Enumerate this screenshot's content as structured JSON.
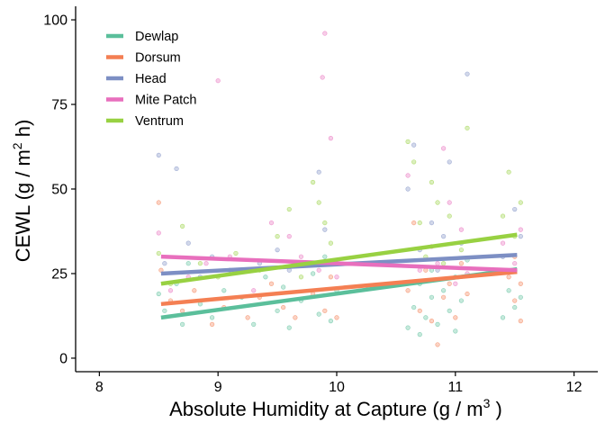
{
  "chart_data": {
    "type": "scatter",
    "title": "",
    "xlabel_main": "Absolute Humidity at Capture (g / m",
    "xlabel_sup": "3",
    "xlabel_end": " )",
    "ylabel_main": "CEWL (g / m",
    "ylabel_sup": "2",
    "ylabel_end": " h)",
    "xlim": [
      7.8,
      12.2
    ],
    "ylim": [
      -4,
      104
    ],
    "x_ticks": [
      8,
      9,
      10,
      11,
      12
    ],
    "y_ticks": [
      0,
      25,
      50,
      75,
      100
    ],
    "grid": false,
    "legend_position": "top-left",
    "series": [
      {
        "name": "Dewlap",
        "color": "#5bbf9b",
        "fit": {
          "x": [
            8.52,
            11.52
          ],
          "y": [
            12.0,
            26.3
          ]
        },
        "points": [
          [
            8.5,
            19
          ],
          [
            8.55,
            14
          ],
          [
            8.65,
            22
          ],
          [
            8.7,
            10
          ],
          [
            8.75,
            28
          ],
          [
            8.85,
            16
          ],
          [
            8.95,
            12
          ],
          [
            9.05,
            20
          ],
          [
            9.2,
            18
          ],
          [
            9.3,
            10
          ],
          [
            9.4,
            24
          ],
          [
            9.5,
            14
          ],
          [
            9.55,
            21
          ],
          [
            9.6,
            9
          ],
          [
            9.7,
            17
          ],
          [
            9.8,
            25
          ],
          [
            9.85,
            13
          ],
          [
            9.9,
            30
          ],
          [
            9.95,
            11
          ],
          [
            10.0,
            20
          ],
          [
            10.6,
            9
          ],
          [
            10.65,
            15
          ],
          [
            10.7,
            22
          ],
          [
            10.7,
            7
          ],
          [
            10.75,
            12
          ],
          [
            10.8,
            18
          ],
          [
            10.8,
            26
          ],
          [
            10.85,
            10
          ],
          [
            10.9,
            20
          ],
          [
            10.95,
            14
          ],
          [
            11.0,
            24
          ],
          [
            11.0,
            8
          ],
          [
            11.05,
            17
          ],
          [
            11.1,
            29
          ],
          [
            11.4,
            12
          ],
          [
            11.45,
            20
          ],
          [
            11.5,
            15
          ],
          [
            11.5,
            26
          ],
          [
            11.55,
            18
          ]
        ]
      },
      {
        "name": "Dorsum",
        "color": "#f47f53",
        "fit": {
          "x": [
            8.52,
            11.52
          ],
          "y": [
            16.0,
            25.5
          ]
        },
        "points": [
          [
            8.5,
            46
          ],
          [
            8.52,
            26
          ],
          [
            8.6,
            17
          ],
          [
            8.7,
            14
          ],
          [
            8.8,
            20
          ],
          [
            8.95,
            10
          ],
          [
            9.05,
            15
          ],
          [
            9.25,
            12
          ],
          [
            9.35,
            18
          ],
          [
            9.45,
            22
          ],
          [
            9.55,
            15
          ],
          [
            9.65,
            12
          ],
          [
            9.8,
            19
          ],
          [
            9.9,
            14
          ],
          [
            9.95,
            24
          ],
          [
            10.0,
            12
          ],
          [
            10.6,
            20
          ],
          [
            10.65,
            40
          ],
          [
            10.7,
            14
          ],
          [
            10.75,
            26
          ],
          [
            10.8,
            11
          ],
          [
            10.85,
            4
          ],
          [
            10.9,
            18
          ],
          [
            10.95,
            22
          ],
          [
            11.0,
            12
          ],
          [
            11.05,
            28
          ],
          [
            11.1,
            19
          ],
          [
            11.45,
            24
          ],
          [
            11.5,
            17
          ],
          [
            11.5,
            30
          ],
          [
            11.55,
            22
          ],
          [
            11.55,
            11
          ]
        ]
      },
      {
        "name": "Head",
        "color": "#7d8fc4",
        "fit": {
          "x": [
            8.52,
            11.52
          ],
          "y": [
            25.0,
            30.5
          ]
        },
        "points": [
          [
            8.5,
            60
          ],
          [
            8.55,
            28
          ],
          [
            8.65,
            56
          ],
          [
            8.75,
            34
          ],
          [
            8.85,
            24
          ],
          [
            8.95,
            30
          ],
          [
            9.1,
            26
          ],
          [
            9.35,
            28
          ],
          [
            9.5,
            32
          ],
          [
            9.6,
            26
          ],
          [
            9.85,
            55
          ],
          [
            9.9,
            38
          ],
          [
            9.95,
            28
          ],
          [
            10.6,
            50
          ],
          [
            10.65,
            63
          ],
          [
            10.7,
            32
          ],
          [
            10.8,
            40
          ],
          [
            10.85,
            26
          ],
          [
            10.9,
            36
          ],
          [
            10.95,
            58
          ],
          [
            11.05,
            34
          ],
          [
            11.1,
            84
          ],
          [
            11.4,
            30
          ],
          [
            11.5,
            44
          ],
          [
            11.55,
            36
          ]
        ]
      },
      {
        "name": "Mite Patch",
        "color": "#e86fbd",
        "fit": {
          "x": [
            8.52,
            11.52
          ],
          "y": [
            30.0,
            26.0
          ]
        },
        "points": [
          [
            8.5,
            37
          ],
          [
            8.6,
            20
          ],
          [
            8.75,
            24
          ],
          [
            8.9,
            28
          ],
          [
            9.0,
            82
          ],
          [
            9.1,
            30
          ],
          [
            9.3,
            20
          ],
          [
            9.45,
            40
          ],
          [
            9.6,
            36
          ],
          [
            9.7,
            30
          ],
          [
            9.85,
            26
          ],
          [
            9.88,
            83
          ],
          [
            9.9,
            96
          ],
          [
            9.95,
            65
          ],
          [
            10.0,
            24
          ],
          [
            10.6,
            54
          ],
          [
            10.7,
            26
          ],
          [
            10.8,
            33
          ],
          [
            10.85,
            28
          ],
          [
            10.9,
            62
          ],
          [
            10.95,
            46
          ],
          [
            11.0,
            22
          ],
          [
            11.05,
            38
          ],
          [
            11.1,
            25
          ],
          [
            11.4,
            34
          ],
          [
            11.5,
            28
          ],
          [
            11.55,
            38
          ]
        ]
      },
      {
        "name": "Ventrum",
        "color": "#98d142",
        "fit": {
          "x": [
            8.52,
            11.52
          ],
          "y": [
            22.0,
            36.5
          ]
        },
        "points": [
          [
            8.5,
            31
          ],
          [
            8.6,
            22
          ],
          [
            8.7,
            39
          ],
          [
            8.85,
            28
          ],
          [
            9.0,
            24
          ],
          [
            9.15,
            31
          ],
          [
            9.35,
            26
          ],
          [
            9.5,
            36
          ],
          [
            9.6,
            44
          ],
          [
            9.7,
            24
          ],
          [
            9.8,
            52
          ],
          [
            9.85,
            46
          ],
          [
            9.9,
            40
          ],
          [
            9.95,
            34
          ],
          [
            10.6,
            64
          ],
          [
            10.65,
            58
          ],
          [
            10.7,
            40
          ],
          [
            10.75,
            30
          ],
          [
            10.8,
            52
          ],
          [
            10.85,
            46
          ],
          [
            10.9,
            28
          ],
          [
            10.95,
            42
          ],
          [
            11.05,
            32
          ],
          [
            11.1,
            68
          ],
          [
            11.4,
            42
          ],
          [
            11.45,
            55
          ],
          [
            11.5,
            36
          ],
          [
            11.55,
            46
          ]
        ]
      }
    ]
  }
}
